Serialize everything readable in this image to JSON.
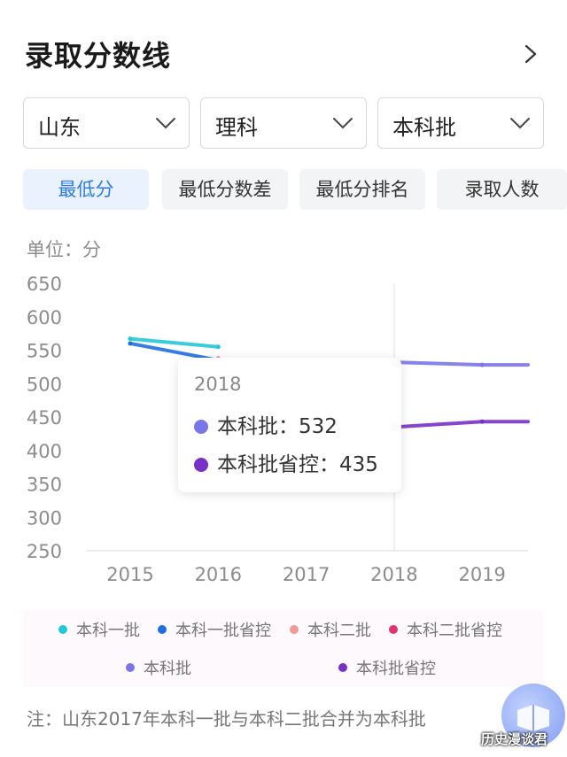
{
  "header": {
    "title": "录取分数线"
  },
  "selects": [
    {
      "value": "山东"
    },
    {
      "value": "理科"
    },
    {
      "value": "本科批"
    }
  ],
  "tabs": [
    {
      "label": "最低分",
      "active": true
    },
    {
      "label": "最低分数差",
      "active": false
    },
    {
      "label": "最低分排名",
      "active": false
    },
    {
      "label": "录取人数",
      "active": false
    }
  ],
  "unit_label": "单位：分",
  "chart_data": {
    "type": "line",
    "x": [
      "2015",
      "2016",
      "2017",
      "2018",
      "2019"
    ],
    "ylim": [
      250,
      650
    ],
    "yticks": [
      "650",
      "600",
      "550",
      "500",
      "450",
      "400",
      "350",
      "300",
      "250"
    ],
    "series": [
      {
        "name": "本科一批",
        "color": "#22c8d8",
        "values": [
          567,
          555,
          null,
          null,
          null
        ]
      },
      {
        "name": "本科一批省控",
        "color": "#1e6fe0",
        "values": [
          560,
          535,
          null,
          null,
          null
        ]
      },
      {
        "name": "本科二批",
        "color": "#f19a93",
        "values": [
          null,
          538,
          null,
          null,
          null
        ]
      },
      {
        "name": "本科二批省控",
        "color": "#e0336e",
        "values": [
          null,
          null,
          null,
          null,
          null
        ]
      },
      {
        "name": "本科批",
        "color": "#7b76e8",
        "values": [
          null,
          null,
          null,
          532,
          528
        ]
      },
      {
        "name": "本科批省控",
        "color": "#7a2fc8",
        "values": [
          null,
          null,
          null,
          435,
          443
        ]
      }
    ],
    "tooltip": {
      "year": "2018",
      "rows": [
        {
          "label": "本科批：532",
          "color": "#7b76e8"
        },
        {
          "label": "本科批省控：435",
          "color": "#7a2fc8"
        }
      ]
    }
  },
  "note": "注：山东2017年本科一批与本科二批合并为本科批",
  "watermark": "历史漫谈君",
  "colors": {
    "accent": "#2e7ce6",
    "tab_active_bg": "#eaf2fd"
  }
}
